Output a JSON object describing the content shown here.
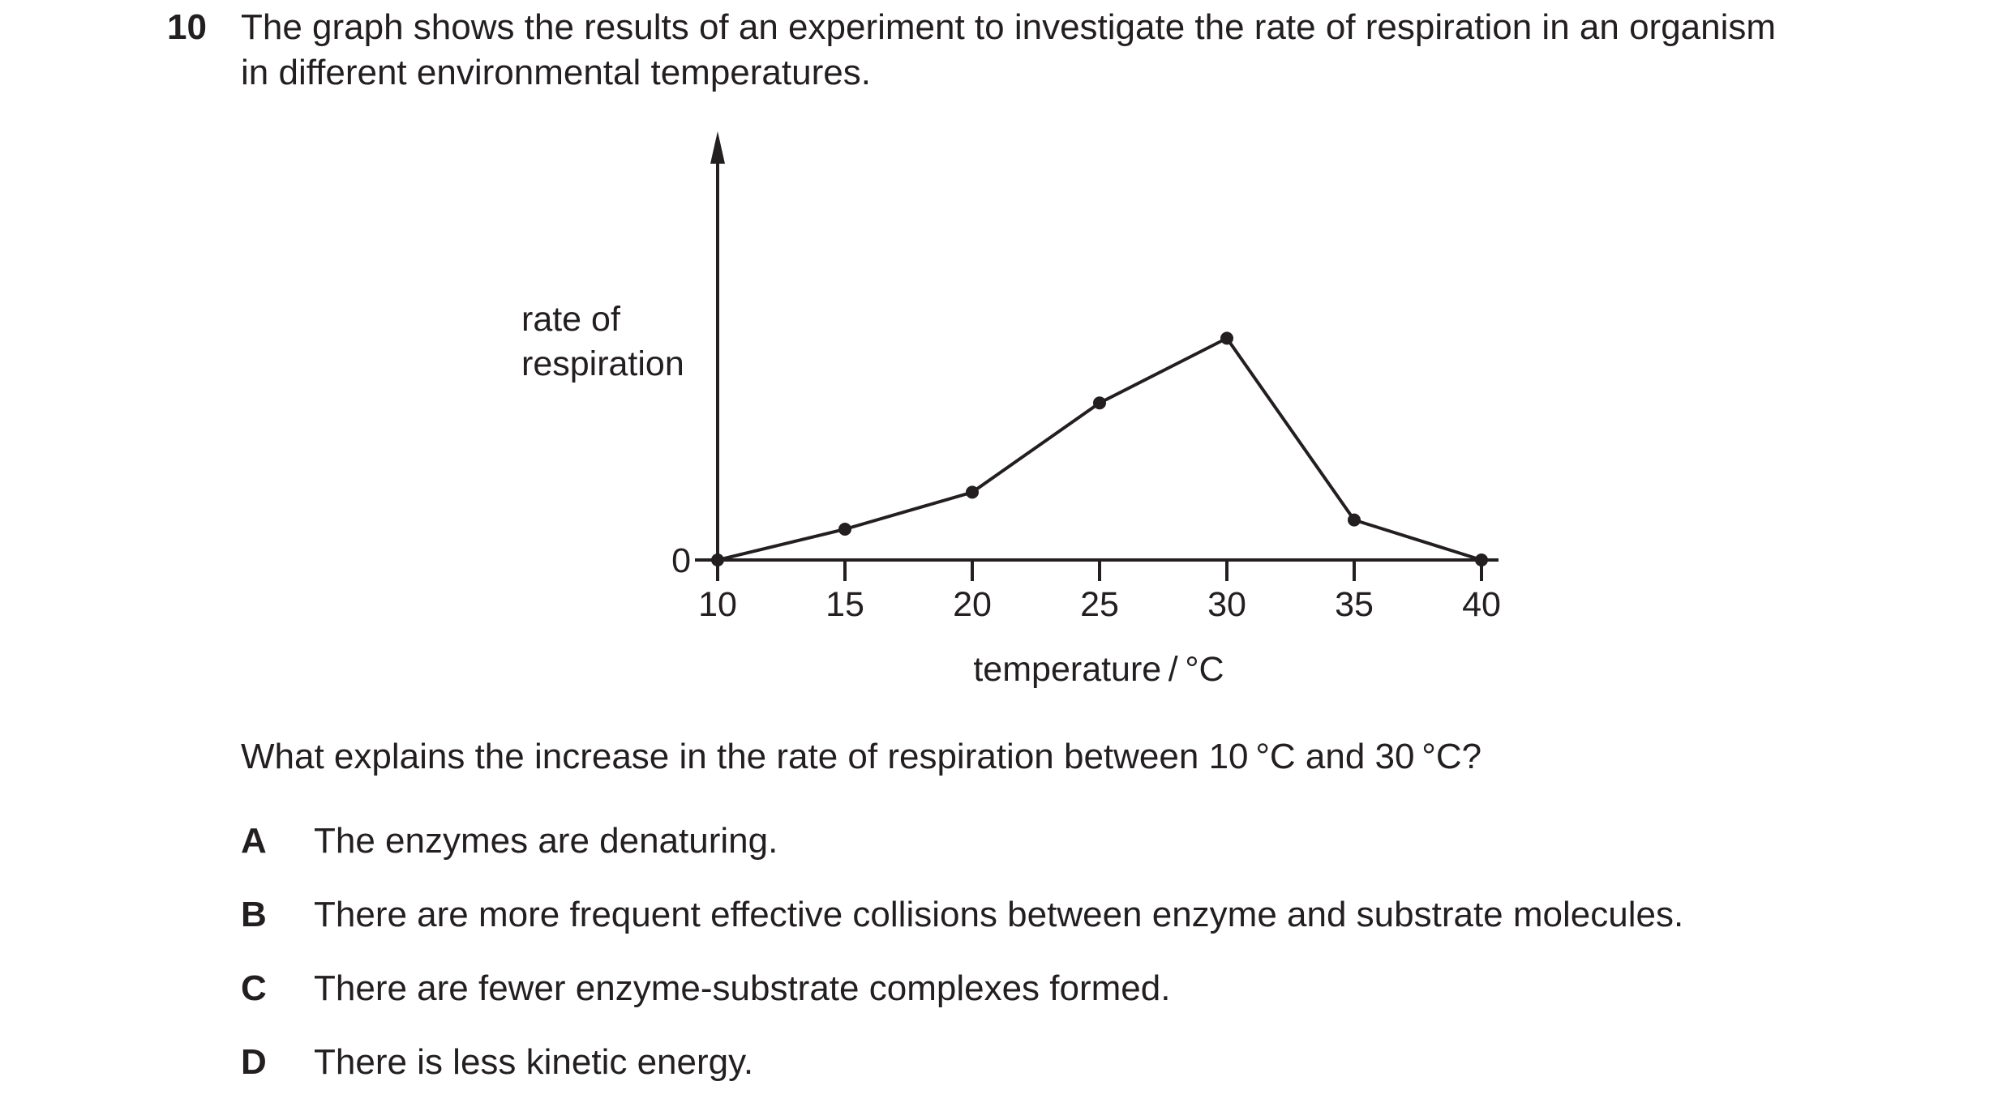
{
  "question": {
    "number": "10",
    "stem_line1": "The graph shows the results of an experiment to investigate the rate of respiration in an organism",
    "stem_line2": "in different environmental temperatures.",
    "prompt": "What explains the increase in the rate of respiration between 10 °C and 30 °C?"
  },
  "options": [
    {
      "letter": "A",
      "text": "The enzymes are denaturing."
    },
    {
      "letter": "B",
      "text": "There are more frequent effective collisions between enzyme and substrate molecules."
    },
    {
      "letter": "C",
      "text": "There are fewer enzyme-substrate complexes formed."
    },
    {
      "letter": "D",
      "text": "There is less kinetic energy."
    }
  ],
  "chart_data": {
    "type": "line",
    "xlabel": "temperature / °C",
    "ylabel_line1": "rate of",
    "ylabel_line2": "respiration",
    "y_zero_label": "0",
    "x_ticks": [
      10,
      15,
      20,
      25,
      30,
      35,
      40
    ],
    "xlim": [
      10,
      40
    ],
    "ylim": [
      0,
      10
    ],
    "series": [
      {
        "x": [
          10,
          15,
          20,
          25,
          30,
          35,
          40
        ],
        "y": [
          0,
          1.0,
          2.2,
          5.1,
          7.2,
          1.3,
          0
        ]
      }
    ],
    "grid": false,
    "y_axis_arrow": true
  }
}
